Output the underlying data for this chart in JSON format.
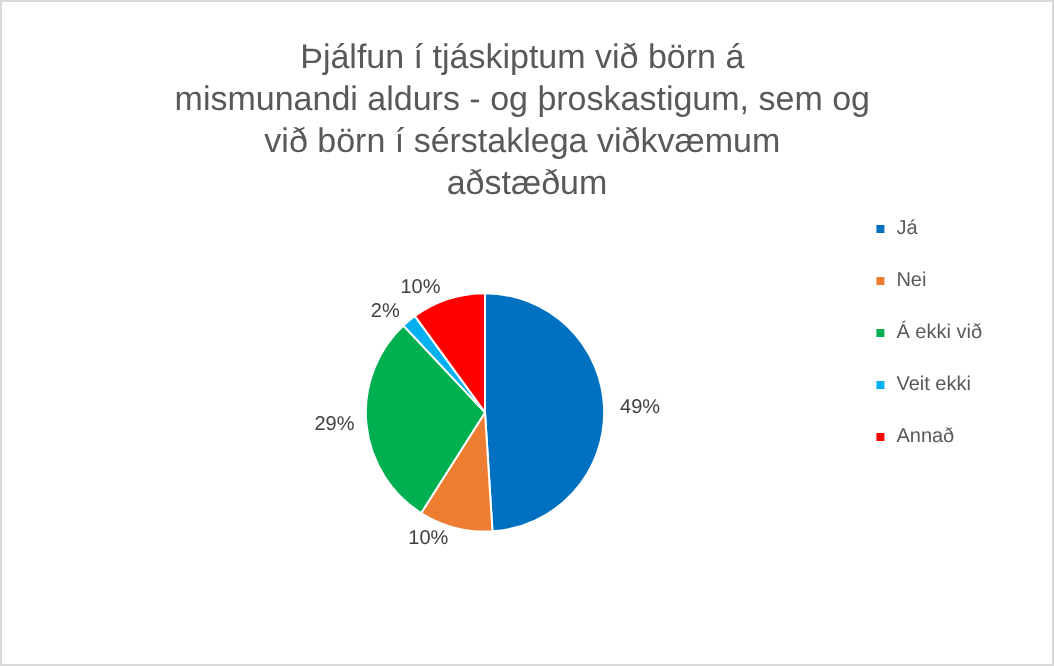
{
  "chart_data": {
    "type": "pie",
    "title": "Þjálfun í tjáskiptum við börn á mismunandi aldurs - og þroskastigum, sem og við börn í sérstaklega viðkvæmum aðstæðum",
    "categories": [
      "Já",
      "Nei",
      "Á ekki við",
      "Veit ekki",
      "Annað"
    ],
    "values": [
      49,
      10,
      29,
      2,
      10
    ],
    "colors": [
      "#0070c0",
      "#ed7d31",
      "#00b050",
      "#00b0f0",
      "#ff0000"
    ],
    "value_labels": [
      "49%",
      "10%",
      "29%",
      "2%",
      "10%"
    ],
    "legend": "right"
  }
}
